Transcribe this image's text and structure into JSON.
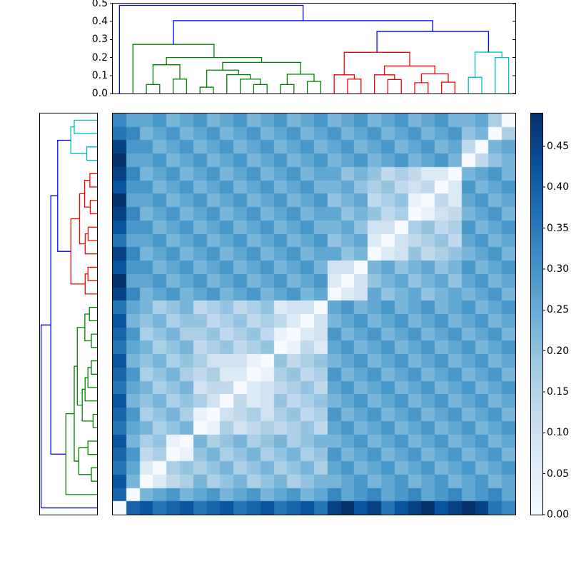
{
  "figure": {
    "background": "#ffffff",
    "description": "Hierarchical clustering heatmap: top and left dendrograms with reordered pairwise distance matrix and Blues colorbar"
  },
  "chart_data": {
    "type": "heatmap",
    "subtype": "clustered-distance-matrix-with-dendrograms",
    "n": 30,
    "colormap": "Blues",
    "colormap_stops": [
      "#f7fbff",
      "#deebf7",
      "#c6dbef",
      "#9ecae1",
      "#6baed6",
      "#4292c6",
      "#2171b5",
      "#08519c",
      "#08306b"
    ],
    "vmin": 0.0,
    "vmax": 0.49,
    "value_encoding": "matrix entries are integers 0-15; distance value = entry * 0.0327 (0 = white diagonal, 15 = 0.49 darkest)",
    "row_display": "leaf 0 at bottom of heatmap (rows flipped), so white diagonal runs bottom-left to top-right",
    "col_display": "leaf 0 at left",
    "matrix": [
      [
        0,
        12,
        13,
        11,
        12,
        13,
        11,
        12,
        13,
        11,
        12,
        13,
        11,
        12,
        13,
        11,
        14,
        15,
        13,
        14,
        11,
        13,
        14,
        15,
        13,
        14,
        15,
        14,
        11,
        10
      ],
      [
        12,
        0,
        7,
        8,
        9,
        7,
        8,
        9,
        7,
        8,
        9,
        7,
        8,
        9,
        7,
        8,
        10,
        8,
        9,
        10,
        8,
        9,
        10,
        8,
        9,
        10,
        8,
        9,
        10,
        8
      ],
      [
        13,
        7,
        0,
        2,
        4,
        5,
        7,
        5,
        6,
        7,
        5,
        6,
        7,
        5,
        6,
        7,
        7,
        8,
        9,
        7,
        8,
        9,
        7,
        8,
        9,
        7,
        8,
        9,
        7,
        8
      ],
      [
        11,
        8,
        2,
        0,
        5,
        6,
        5,
        6,
        7,
        5,
        6,
        7,
        5,
        6,
        7,
        5,
        8,
        9,
        7,
        8,
        9,
        7,
        8,
        9,
        7,
        8,
        9,
        7,
        8,
        9
      ],
      [
        12,
        9,
        4,
        5,
        0,
        1,
        6,
        7,
        5,
        6,
        7,
        5,
        6,
        7,
        5,
        6,
        9,
        7,
        8,
        9,
        7,
        8,
        9,
        7,
        8,
        9,
        7,
        8,
        9,
        7
      ],
      [
        13,
        7,
        5,
        6,
        1,
        0,
        7,
        5,
        6,
        7,
        5,
        6,
        7,
        5,
        6,
        7,
        7,
        8,
        9,
        7,
        8,
        9,
        7,
        8,
        9,
        7,
        8,
        9,
        7,
        8
      ],
      [
        11,
        8,
        7,
        5,
        6,
        7,
        0,
        1,
        5,
        3,
        4,
        5,
        4,
        5,
        6,
        4,
        8,
        9,
        7,
        8,
        9,
        7,
        8,
        9,
        7,
        8,
        9,
        7,
        8,
        9
      ],
      [
        12,
        9,
        5,
        6,
        7,
        5,
        1,
        0,
        3,
        4,
        5,
        3,
        5,
        6,
        4,
        5,
        9,
        7,
        8,
        9,
        7,
        8,
        9,
        7,
        8,
        9,
        7,
        8,
        9,
        7
      ],
      [
        13,
        7,
        6,
        7,
        5,
        6,
        5,
        3,
        0,
        4,
        2,
        3,
        6,
        4,
        5,
        6,
        7,
        8,
        9,
        7,
        8,
        9,
        7,
        8,
        9,
        7,
        8,
        9,
        7,
        8
      ],
      [
        11,
        8,
        7,
        5,
        6,
        7,
        3,
        4,
        4,
        0,
        2,
        3,
        4,
        5,
        6,
        4,
        8,
        9,
        7,
        8,
        9,
        7,
        8,
        9,
        7,
        8,
        9,
        7,
        8,
        9
      ],
      [
        12,
        9,
        5,
        6,
        7,
        5,
        4,
        5,
        2,
        2,
        0,
        1,
        5,
        6,
        4,
        5,
        9,
        7,
        8,
        9,
        7,
        8,
        9,
        7,
        8,
        9,
        7,
        8,
        9,
        7
      ],
      [
        13,
        7,
        6,
        7,
        5,
        6,
        5,
        3,
        3,
        3,
        1,
        0,
        6,
        4,
        5,
        6,
        7,
        8,
        9,
        7,
        8,
        9,
        7,
        8,
        9,
        7,
        8,
        9,
        7,
        8
      ],
      [
        11,
        8,
        7,
        5,
        6,
        7,
        4,
        5,
        6,
        4,
        5,
        6,
        0,
        1,
        4,
        2,
        8,
        9,
        7,
        8,
        9,
        7,
        8,
        9,
        7,
        8,
        9,
        7,
        8,
        9
      ],
      [
        12,
        9,
        5,
        6,
        7,
        5,
        5,
        6,
        4,
        5,
        6,
        4,
        1,
        0,
        2,
        3,
        9,
        7,
        8,
        9,
        7,
        8,
        9,
        7,
        8,
        9,
        7,
        8,
        9,
        7
      ],
      [
        13,
        7,
        6,
        7,
        5,
        6,
        6,
        4,
        5,
        6,
        4,
        5,
        4,
        2,
        0,
        3,
        7,
        8,
        9,
        7,
        8,
        9,
        7,
        8,
        9,
        7,
        8,
        9,
        7,
        8
      ],
      [
        11,
        8,
        7,
        5,
        6,
        7,
        4,
        5,
        6,
        4,
        5,
        6,
        2,
        3,
        3,
        0,
        8,
        9,
        7,
        8,
        9,
        7,
        8,
        9,
        7,
        8,
        9,
        7,
        8,
        9
      ],
      [
        14,
        10,
        7,
        8,
        9,
        7,
        8,
        9,
        7,
        8,
        9,
        7,
        8,
        9,
        7,
        8,
        0,
        2,
        3,
        8,
        6,
        7,
        8,
        6,
        7,
        8,
        7,
        8,
        9,
        7
      ],
      [
        15,
        8,
        8,
        9,
        7,
        8,
        9,
        7,
        8,
        9,
        7,
        8,
        9,
        7,
        8,
        9,
        2,
        0,
        3,
        6,
        7,
        8,
        6,
        7,
        8,
        6,
        8,
        9,
        7,
        8
      ],
      [
        13,
        9,
        9,
        7,
        8,
        9,
        7,
        8,
        9,
        7,
        8,
        9,
        7,
        8,
        9,
        7,
        3,
        3,
        0,
        7,
        8,
        6,
        7,
        8,
        6,
        7,
        9,
        7,
        8,
        9
      ],
      [
        14,
        10,
        7,
        8,
        9,
        7,
        8,
        9,
        7,
        8,
        9,
        7,
        8,
        9,
        7,
        8,
        8,
        6,
        7,
        0,
        2,
        3,
        6,
        4,
        5,
        6,
        7,
        8,
        9,
        7
      ],
      [
        11,
        8,
        8,
        9,
        7,
        8,
        9,
        7,
        8,
        9,
        7,
        8,
        9,
        7,
        8,
        9,
        6,
        7,
        8,
        2,
        0,
        3,
        4,
        5,
        6,
        4,
        8,
        9,
        7,
        8
      ],
      [
        13,
        9,
        9,
        7,
        8,
        9,
        7,
        8,
        9,
        7,
        8,
        9,
        7,
        8,
        9,
        7,
        7,
        8,
        6,
        3,
        3,
        0,
        5,
        6,
        4,
        5,
        9,
        7,
        8,
        9
      ],
      [
        14,
        10,
        7,
        8,
        9,
        7,
        8,
        9,
        7,
        8,
        9,
        7,
        8,
        9,
        7,
        8,
        8,
        6,
        7,
        6,
        4,
        5,
        0,
        1,
        3,
        4,
        7,
        8,
        9,
        7
      ],
      [
        15,
        8,
        8,
        9,
        7,
        8,
        9,
        7,
        8,
        9,
        7,
        8,
        9,
        7,
        8,
        9,
        6,
        7,
        8,
        4,
        5,
        6,
        1,
        0,
        4,
        2,
        8,
        9,
        7,
        8
      ],
      [
        13,
        9,
        9,
        7,
        8,
        9,
        7,
        8,
        9,
        7,
        8,
        9,
        7,
        8,
        9,
        7,
        7,
        8,
        6,
        5,
        6,
        4,
        3,
        4,
        0,
        2,
        9,
        7,
        8,
        9
      ],
      [
        14,
        10,
        7,
        8,
        9,
        7,
        8,
        9,
        7,
        8,
        9,
        7,
        8,
        9,
        7,
        8,
        8,
        6,
        7,
        6,
        4,
        5,
        4,
        2,
        2,
        0,
        7,
        8,
        9,
        7
      ],
      [
        15,
        8,
        8,
        9,
        7,
        8,
        9,
        7,
        8,
        9,
        7,
        8,
        9,
        7,
        8,
        9,
        7,
        8,
        9,
        7,
        8,
        9,
        7,
        8,
        9,
        7,
        0,
        4,
        6,
        7
      ],
      [
        14,
        9,
        9,
        7,
        8,
        9,
        7,
        8,
        9,
        7,
        8,
        9,
        7,
        8,
        9,
        7,
        8,
        9,
        7,
        8,
        9,
        7,
        8,
        9,
        7,
        8,
        4,
        0,
        7,
        8
      ],
      [
        11,
        10,
        7,
        8,
        9,
        7,
        8,
        9,
        7,
        8,
        9,
        7,
        8,
        9,
        7,
        8,
        9,
        7,
        8,
        9,
        7,
        8,
        9,
        7,
        8,
        9,
        6,
        7,
        0,
        5
      ],
      [
        10,
        8,
        8,
        9,
        7,
        8,
        9,
        7,
        8,
        9,
        7,
        8,
        9,
        7,
        8,
        9,
        7,
        8,
        9,
        7,
        8,
        9,
        7,
        8,
        9,
        7,
        7,
        8,
        5,
        0
      ]
    ],
    "dendrogram": {
      "n_leaves": 30,
      "clusters": {
        "blue_outlier_leaf": 0,
        "green_leaves": "1-15",
        "red_leaves": "16-25",
        "cyan_leaves": "26-29"
      },
      "link_colors": {
        "blue": "#0000ff",
        "green": "#008000",
        "red": "#ff0000",
        "cyan": "#00bfbf"
      },
      "merges": [
        [
          2,
          3,
          0.05,
          "green"
        ],
        [
          4,
          5,
          0.08,
          "green"
        ],
        [
          30,
          31,
          0.16,
          "green"
        ],
        [
          6,
          7,
          0.035,
          "green"
        ],
        [
          10,
          11,
          0.05,
          "green"
        ],
        [
          9,
          34,
          0.08,
          "green"
        ],
        [
          8,
          35,
          0.105,
          "green"
        ],
        [
          33,
          36,
          0.13,
          "green"
        ],
        [
          12,
          13,
          0.05,
          "green"
        ],
        [
          14,
          15,
          0.067,
          "green"
        ],
        [
          38,
          39,
          0.107,
          "green"
        ],
        [
          37,
          40,
          0.173,
          "green"
        ],
        [
          32,
          41,
          0.2,
          "green"
        ],
        [
          1,
          42,
          0.273,
          "green"
        ],
        [
          17,
          18,
          0.08,
          "red"
        ],
        [
          16,
          44,
          0.104,
          "red"
        ],
        [
          20,
          21,
          0.078,
          "red"
        ],
        [
          19,
          46,
          0.104,
          "red"
        ],
        [
          22,
          23,
          0.06,
          "red"
        ],
        [
          24,
          25,
          0.063,
          "red"
        ],
        [
          48,
          49,
          0.109,
          "red"
        ],
        [
          47,
          50,
          0.153,
          "red"
        ],
        [
          45,
          51,
          0.229,
          "red"
        ],
        [
          26,
          27,
          0.09,
          "cyan"
        ],
        [
          28,
          29,
          0.2,
          "cyan"
        ],
        [
          53,
          54,
          0.23,
          "cyan"
        ],
        [
          52,
          55,
          0.345,
          "blue"
        ],
        [
          43,
          56,
          0.405,
          "blue"
        ],
        [
          0,
          57,
          0.49,
          "blue"
        ]
      ]
    },
    "top_axis": {
      "tick_values": [
        0.0,
        0.1,
        0.2,
        0.3,
        0.4,
        0.5
      ],
      "tick_labels": [
        "0.0",
        "0.1",
        "0.2",
        "0.3",
        "0.4",
        "0.5"
      ],
      "max": 0.5,
      "grid": false
    },
    "colorbar": {
      "tick_values": [
        0.0,
        0.05,
        0.1,
        0.15,
        0.2,
        0.25,
        0.3,
        0.35,
        0.4,
        0.45
      ],
      "tick_labels": [
        "0.00",
        "0.05",
        "0.10",
        "0.15",
        "0.20",
        "0.25",
        "0.30",
        "0.35",
        "0.40",
        "0.45"
      ],
      "vmin": 0.0,
      "vmax": 0.49,
      "position": "right"
    }
  }
}
